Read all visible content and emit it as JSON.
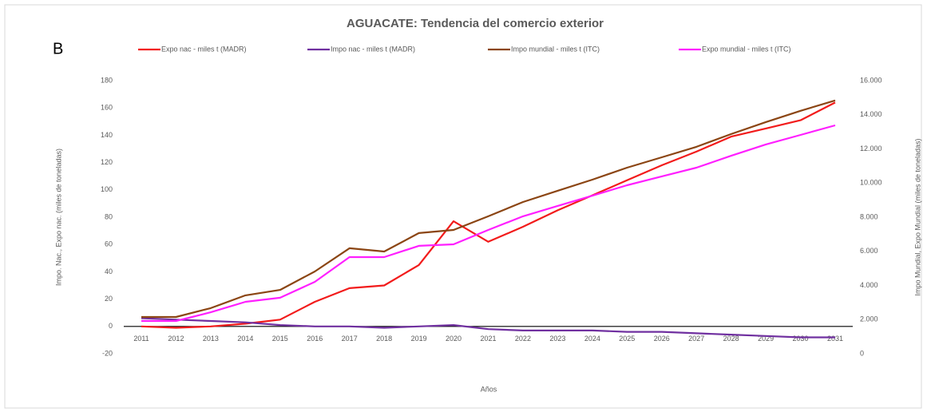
{
  "panel_label": "B",
  "chart_data": {
    "type": "line",
    "title": "AGUACATE: Tendencia del comercio exterior",
    "xlabel": "Años",
    "ylabel": "Impo. Nac., Expo nac. (miles de toneladas)",
    "y2label": "Impo Mundial, Expo Mundial (miles de toneladas)",
    "categories": [
      "2011",
      "2012",
      "2013",
      "2014",
      "2015",
      "2016",
      "2017",
      "2018",
      "2019",
      "2020",
      "2021",
      "2022",
      "2023",
      "2024",
      "2025",
      "2026",
      "2027",
      "2028",
      "2029",
      "2030",
      "2031"
    ],
    "ylim": [
      -20,
      180
    ],
    "yticks": [
      -20,
      0,
      20,
      40,
      60,
      80,
      100,
      120,
      140,
      160,
      180
    ],
    "y2lim": [
      0,
      16000
    ],
    "y2ticks": [
      0,
      {
        "value": 2000,
        "label": "2.000"
      },
      {
        "value": 4000,
        "label": "4.000"
      },
      {
        "value": 6000,
        "label": "6.000"
      },
      {
        "value": 8000,
        "label": "8.000"
      },
      {
        "value": 10000,
        "label": "10.000"
      },
      {
        "value": 12000,
        "label": "12.000"
      },
      {
        "value": 14000,
        "label": "14.000"
      },
      {
        "value": 16000,
        "label": "16.000"
      }
    ],
    "legend": "top",
    "series": [
      {
        "name": "Expo nac - miles t (MADR)",
        "color": "#f21b1b",
        "values": [
          0,
          -1,
          0,
          2,
          5,
          18,
          28,
          30,
          45,
          77,
          62,
          73,
          85,
          96,
          107,
          118,
          128,
          139,
          145,
          151,
          164
        ]
      },
      {
        "name": "Impo nac - miles t (MADR)",
        "color": "#7030a0",
        "values": [
          6,
          5,
          4,
          3,
          1,
          0,
          0,
          -1,
          0,
          1,
          -2,
          -3,
          -3,
          -3,
          -4,
          -4,
          -5,
          -6,
          -7,
          -8,
          -8
        ]
      },
      {
        "name": "Impo mundial - miles t (ITC)",
        "color": "#8b4513",
        "axis": "y2",
        "values": [
          2150,
          2150,
          2670,
          3420,
          3740,
          4820,
          6180,
          5990,
          7070,
          7250,
          8050,
          8890,
          9550,
          10200,
          10900,
          11510,
          12120,
          12870,
          13570,
          14230,
          14840
        ]
      },
      {
        "name": "Expo mundial - miles t (ITC)",
        "color": "#ff1fff",
        "axis": "y2",
        "values": [
          1920,
          1920,
          2430,
          3040,
          3280,
          4210,
          5660,
          5660,
          6320,
          6410,
          7250,
          8050,
          8660,
          9260,
          9870,
          10390,
          10900,
          11600,
          12260,
          12820,
          13380
        ]
      }
    ]
  }
}
